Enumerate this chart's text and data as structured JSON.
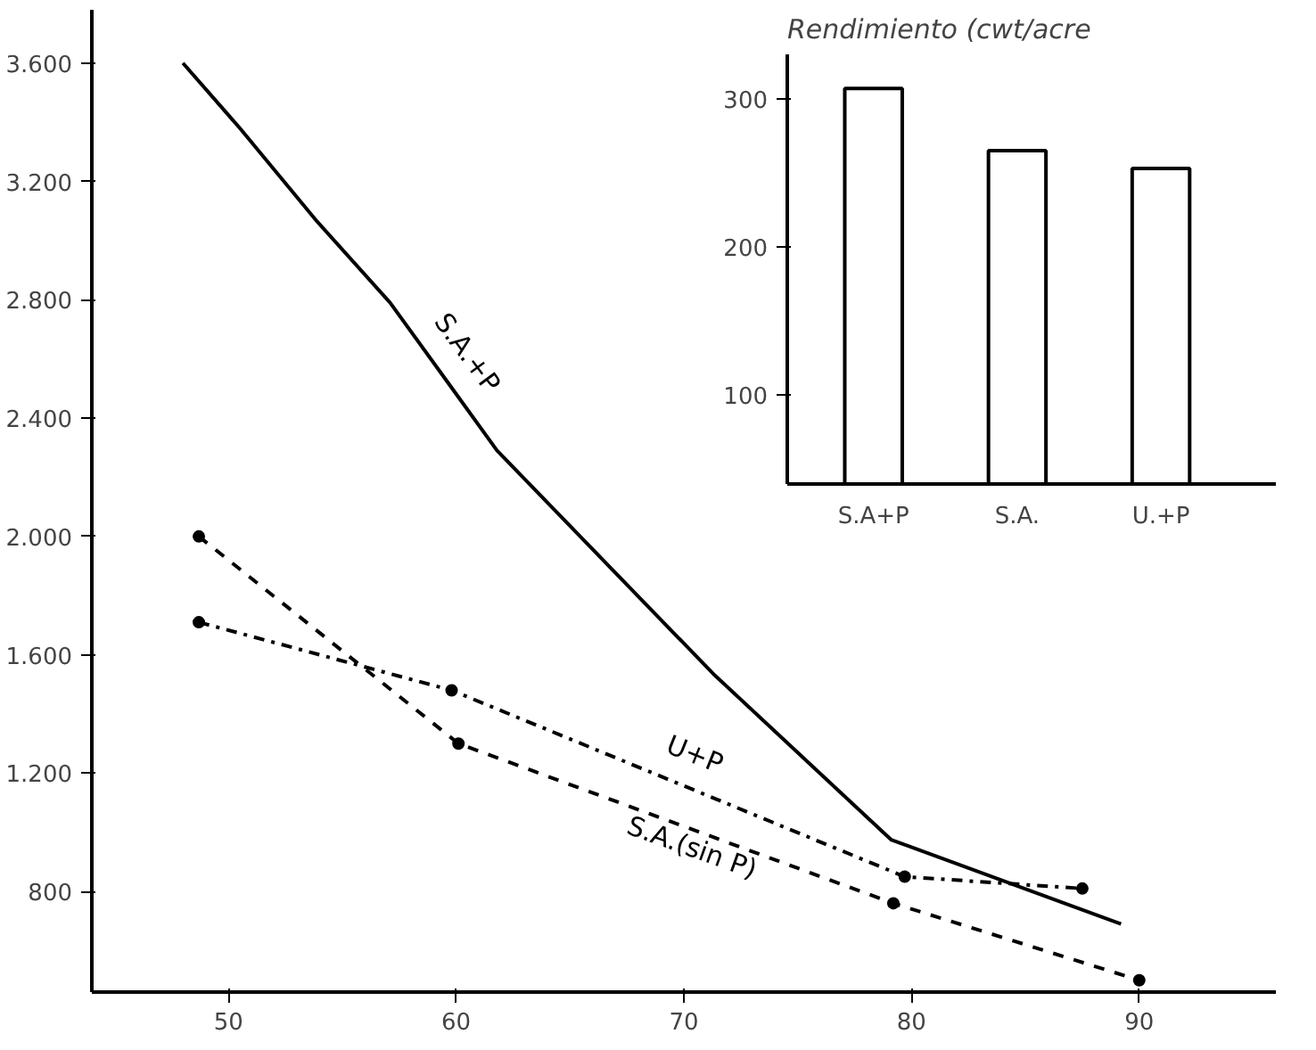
{
  "chart_data": [
    {
      "type": "line",
      "x": [
        48,
        50.5,
        53.9,
        57.1,
        61.8,
        71.3,
        79.1,
        89.2
      ],
      "xlim": [
        44,
        96
      ],
      "xticks": [
        50,
        60,
        70,
        80,
        90
      ],
      "ylim": [
        460,
        3780
      ],
      "yticks": [
        {
          "value": 800,
          "label": "800"
        },
        {
          "value": 1200,
          "label": "1.200"
        },
        {
          "value": 1600,
          "label": "1.600"
        },
        {
          "value": 2000,
          "label": "2.000"
        },
        {
          "value": 2400,
          "label": "2.400"
        },
        {
          "value": 2800,
          "label": "2.800"
        },
        {
          "value": 3200,
          "label": "3.200"
        },
        {
          "value": 3600,
          "label": "3.600"
        }
      ],
      "grid": false,
      "legend": false,
      "series": [
        {
          "name": "S.A.+P",
          "color": "#000000",
          "line_style": "solid",
          "marker": "none",
          "values": [
            3600,
            3380,
            3064,
            2790,
            2290,
            1535,
            975,
            690
          ]
        },
        {
          "name": "U+P",
          "color": "#000000",
          "line_style": "dashdot",
          "marker": "circle",
          "x": [
            48.7,
            59.8,
            79.7,
            87.5
          ],
          "values": [
            1710,
            1480,
            850,
            810
          ]
        },
        {
          "name": "S.A.(sin P)",
          "color": "#000000",
          "line_style": "dashed",
          "marker": "circle",
          "x": [
            48.7,
            60.1,
            79.2,
            90
          ],
          "values": [
            2000,
            1300,
            760,
            500
          ]
        }
      ]
    },
    {
      "type": "bar",
      "title": "Rendimiento (cwt/acre",
      "categories": [
        "S.A+P",
        "S.A.",
        "U.+P"
      ],
      "values": [
        307,
        265,
        253
      ],
      "color": "#ffffff",
      "ylim": [
        40,
        330
      ],
      "yticks": [
        100,
        200,
        300
      ],
      "grid": false
    }
  ]
}
